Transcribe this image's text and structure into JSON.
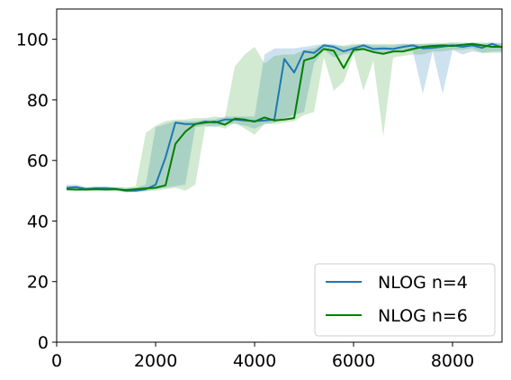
{
  "chart_data": {
    "type": "line",
    "title": "",
    "xlabel": "",
    "ylabel": "",
    "xlim": [
      0,
      9000
    ],
    "ylim": [
      0,
      110
    ],
    "xticks": [
      0,
      2000,
      4000,
      6000,
      8000
    ],
    "yticks": [
      0,
      20,
      40,
      60,
      80,
      100
    ],
    "grid": false,
    "legend_position": "bottom-right",
    "series": [
      {
        "name": "NLOG n=4",
        "color": "#1f77b4",
        "band_color": "#1f77b4",
        "x": [
          200,
          400,
          600,
          800,
          1000,
          1200,
          1400,
          1600,
          1800,
          2000,
          2200,
          2400,
          2600,
          2800,
          3000,
          3200,
          3400,
          3600,
          3800,
          4000,
          4200,
          4400,
          4600,
          4800,
          5000,
          5200,
          5400,
          5600,
          5800,
          6000,
          6200,
          6400,
          6600,
          6800,
          7000,
          7200,
          7400,
          7600,
          7800,
          8000,
          8200,
          8400,
          8600,
          8800,
          9000
        ],
        "y": [
          51.0,
          51.2,
          50.6,
          50.8,
          50.8,
          50.6,
          50.0,
          50.0,
          50.5,
          52.0,
          61.0,
          72.5,
          72.0,
          72.0,
          72.8,
          72.5,
          73.5,
          73.5,
          73.2,
          73.0,
          73.2,
          73.5,
          93.5,
          89.0,
          96.0,
          95.5,
          98.0,
          97.5,
          96.0,
          97.0,
          98.0,
          96.8,
          97.0,
          96.8,
          97.5,
          98.0,
          97.0,
          97.2,
          97.6,
          98.0,
          97.5,
          98.0,
          97.2,
          98.5,
          97.3
        ],
        "lower": [
          50.5,
          50.5,
          50.0,
          50.2,
          50.2,
          50.0,
          49.5,
          49.5,
          49.8,
          50.5,
          51.0,
          51.5,
          52.0,
          71.0,
          71.5,
          71.0,
          72.0,
          72.0,
          71.5,
          70.5,
          72.0,
          72.5,
          74.0,
          75.0,
          76.0,
          92.0,
          96.5,
          94.0,
          95.0,
          95.5,
          96.5,
          95.5,
          95.0,
          95.5,
          96.0,
          96.0,
          82.0,
          96.0,
          82.0,
          96.5,
          95.0,
          96.0,
          95.5,
          96.0,
          96.0
        ],
        "upper": [
          52.0,
          52.0,
          51.2,
          51.5,
          51.5,
          51.2,
          51.0,
          51.0,
          52.0,
          71.0,
          72.0,
          73.0,
          73.0,
          73.0,
          73.5,
          73.5,
          74.5,
          74.5,
          74.5,
          74.5,
          95.0,
          97.0,
          97.0,
          97.0,
          97.5,
          98.0,
          98.5,
          98.5,
          97.5,
          98.0,
          98.5,
          98.0,
          98.0,
          98.0,
          98.5,
          98.5,
          98.5,
          98.5,
          98.5,
          98.8,
          98.5,
          98.8,
          98.5,
          99.0,
          98.5
        ]
      },
      {
        "name": "NLOG n=6",
        "color": "#008000",
        "band_color": "#2ca02c",
        "x": [
          200,
          400,
          600,
          800,
          1000,
          1200,
          1400,
          1600,
          1800,
          2000,
          2200,
          2400,
          2600,
          2800,
          3000,
          3200,
          3400,
          3600,
          3800,
          4000,
          4200,
          4400,
          4600,
          4800,
          5000,
          5200,
          5400,
          5600,
          5800,
          6000,
          6200,
          6400,
          6600,
          6800,
          7000,
          7200,
          7400,
          7600,
          7800,
          8000,
          8200,
          8400,
          8600,
          8800,
          9000
        ],
        "y": [
          50.5,
          50.4,
          50.4,
          50.5,
          50.4,
          50.5,
          50.2,
          50.5,
          50.8,
          51.0,
          51.8,
          65.5,
          69.5,
          72.0,
          72.5,
          72.8,
          71.8,
          73.8,
          73.5,
          72.8,
          74.2,
          73.2,
          73.5,
          74.0,
          93.0,
          94.0,
          96.8,
          96.2,
          90.5,
          96.5,
          96.8,
          95.8,
          95.2,
          96.0,
          96.0,
          96.8,
          97.5,
          97.8,
          98.0,
          97.8,
          98.2,
          98.5,
          98.0,
          97.5,
          97.5
        ],
        "lower": [
          50.0,
          50.0,
          50.0,
          50.0,
          50.0,
          50.0,
          49.5,
          49.8,
          50.0,
          50.0,
          50.5,
          51.0,
          50.0,
          52.0,
          71.0,
          71.5,
          70.5,
          72.5,
          70.5,
          68.5,
          72.0,
          72.0,
          72.5,
          73.0,
          75.0,
          76.0,
          94.0,
          83.0,
          86.0,
          95.0,
          83.0,
          93.0,
          68.0,
          94.0,
          94.5,
          95.0,
          95.0,
          96.0,
          96.0,
          96.5,
          96.5,
          97.0,
          95.5,
          95.5,
          95.5
        ],
        "upper": [
          51.0,
          51.0,
          51.0,
          51.2,
          51.0,
          51.2,
          51.0,
          51.5,
          69.0,
          71.5,
          73.0,
          73.5,
          73.5,
          74.0,
          74.0,
          74.5,
          74.0,
          91.0,
          95.0,
          97.5,
          92.0,
          94.5,
          95.0,
          95.0,
          96.5,
          97.0,
          98.5,
          98.0,
          98.0,
          98.5,
          98.5,
          98.5,
          98.5,
          98.5,
          98.5,
          98.5,
          98.5,
          98.8,
          98.8,
          99.0,
          99.0,
          99.0,
          99.0,
          98.8,
          98.8
        ]
      }
    ]
  }
}
